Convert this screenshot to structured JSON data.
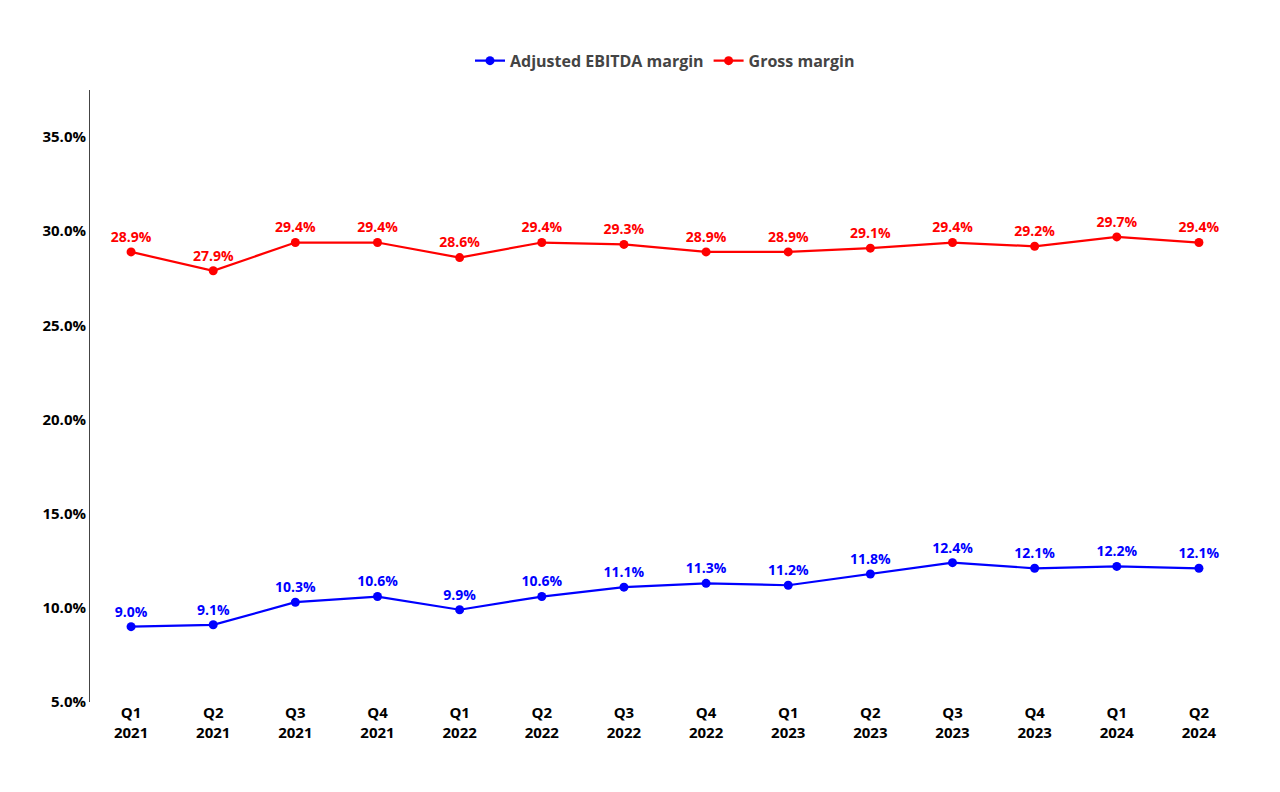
{
  "chart_data": {
    "type": "line",
    "categories": [
      "Q1\n2021",
      "Q2\n2021",
      "Q3\n2021",
      "Q4\n2021",
      "Q1\n2022",
      "Q2\n2022",
      "Q3\n2022",
      "Q4\n2022",
      "Q1\n2023",
      "Q2\n2023",
      "Q3\n2023",
      "Q4\n2023",
      "Q1\n2024",
      "Q2\n2024"
    ],
    "series": [
      {
        "name": "Gross margin",
        "color": "#ff0000",
        "marker": "circle",
        "line_style": "solid",
        "values": [
          28.9,
          27.9,
          29.4,
          29.4,
          28.6,
          29.4,
          29.3,
          28.9,
          28.9,
          29.1,
          29.4,
          29.2,
          29.7,
          29.4
        ],
        "value_labels": [
          "28.9%",
          "27.9%",
          "29.4%",
          "29.4%",
          "28.6%",
          "29.4%",
          "29.3%",
          "28.9%",
          "28.9%",
          "29.1%",
          "29.4%",
          "29.2%",
          "29.7%",
          "29.4%"
        ]
      },
      {
        "name": "Adjusted EBITDA margin",
        "color": "#0000ff",
        "marker": "circle",
        "line_style": "solid",
        "values": [
          9.0,
          9.1,
          10.3,
          10.6,
          9.9,
          10.6,
          11.1,
          11.3,
          11.2,
          11.8,
          12.4,
          12.1,
          12.2,
          12.1
        ],
        "value_labels": [
          "9.0%",
          "9.1%",
          "10.3%",
          "10.6%",
          "9.9%",
          "10.6%",
          "11.1%",
          "11.3%",
          "11.2%",
          "11.8%",
          "12.4%",
          "12.1%",
          "12.2%",
          "12.1%"
        ]
      }
    ],
    "legend_order": [
      "Adjusted EBITDA margin",
      "Gross margin"
    ],
    "ylim": [
      5.0,
      37.5
    ],
    "yticks": [
      {
        "value": 5.0,
        "label": "5.0%"
      },
      {
        "value": 10.0,
        "label": "10.0%"
      },
      {
        "value": 15.0,
        "label": "15.0%"
      },
      {
        "value": 20.0,
        "label": "20.0%"
      },
      {
        "value": 25.0,
        "label": "25.0%"
      },
      {
        "value": 30.0,
        "label": "30.0%"
      },
      {
        "value": 35.0,
        "label": "35.0%"
      }
    ],
    "grid": false,
    "legend": "top",
    "data_labels": true
  }
}
